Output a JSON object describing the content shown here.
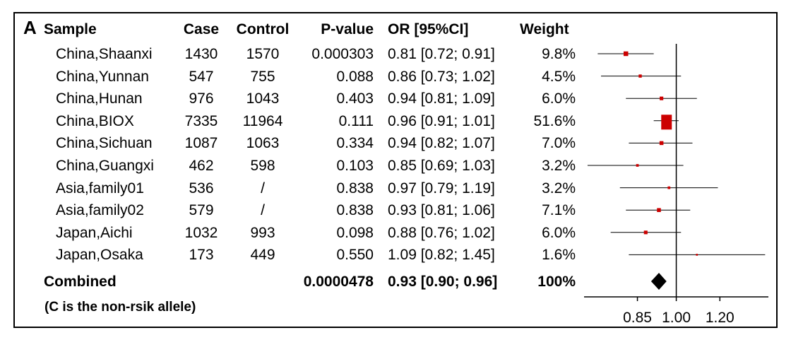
{
  "panel_label": "A",
  "headers": {
    "sample": "Sample",
    "case": "Case",
    "control": "Control",
    "pvalue": "P-value",
    "or": "OR [95%CI]",
    "weight": "Weight"
  },
  "rows": [
    {
      "sample": "China,Shaanxi",
      "case": "1430",
      "control": "1570",
      "pvalue": "0.000303",
      "or": "0.81 [0.72; 0.91]",
      "weight": "9.8%"
    },
    {
      "sample": "China,Yunnan",
      "case": "547",
      "control": "755",
      "pvalue": "0.088",
      "or": "0.86 [0.73; 1.02]",
      "weight": "4.5%"
    },
    {
      "sample": "China,Hunan",
      "case": "976",
      "control": "1043",
      "pvalue": "0.403",
      "or": "0.94 [0.81; 1.09]",
      "weight": "6.0%"
    },
    {
      "sample": "China,BIOX",
      "case": "7335",
      "control": "11964",
      "pvalue": "0.111",
      "or": "0.96 [0.91; 1.01]",
      "weight": "51.6%"
    },
    {
      "sample": "China,Sichuan",
      "case": "1087",
      "control": "1063",
      "pvalue": "0.334",
      "or": "0.94 [0.82; 1.07]",
      "weight": "7.0%"
    },
    {
      "sample": "China,Guangxi",
      "case": "462",
      "control": "598",
      "pvalue": "0.103",
      "or": "0.85 [0.69; 1.03]",
      "weight": "3.2%"
    },
    {
      "sample": "Asia,family01",
      "case": "536",
      "control": "/",
      "pvalue": "0.838",
      "or": "0.97 [0.79; 1.19]",
      "weight": "3.2%"
    },
    {
      "sample": "Asia,family02",
      "case": "579",
      "control": "/",
      "pvalue": "0.838",
      "or": "0.93 [0.81; 1.06]",
      "weight": "7.1%"
    },
    {
      "sample": "Japan,Aichi",
      "case": "1032",
      "control": "993",
      "pvalue": "0.098",
      "or": "0.88 [0.76; 1.02]",
      "weight": "6.0%"
    },
    {
      "sample": "Japan,Osaka",
      "case": "173",
      "control": "449",
      "pvalue": "0.550",
      "or": "1.09 [0.82; 1.45]",
      "weight": "1.6%"
    }
  ],
  "combined": {
    "label": "Combined",
    "pvalue": "0.0000478",
    "or": "0.93 [0.90; 0.96]",
    "weight": "100%"
  },
  "note": "(C is the non-rsik allele)",
  "chart_data": {
    "type": "forest",
    "x_scale": "log",
    "reference_line": 1.0,
    "x_ticks": [
      {
        "value": 0.85,
        "label": "0.85"
      },
      {
        "value": 1.0,
        "label": "1.00"
      },
      {
        "value": 1.2,
        "label": "1.20"
      }
    ],
    "studies": [
      {
        "name": "China,Shaanxi",
        "or": 0.81,
        "lower": 0.72,
        "upper": 0.91,
        "weight": 9.8
      },
      {
        "name": "China,Yunnan",
        "or": 0.86,
        "lower": 0.73,
        "upper": 1.02,
        "weight": 4.5
      },
      {
        "name": "China,Hunan",
        "or": 0.94,
        "lower": 0.81,
        "upper": 1.09,
        "weight": 6.0
      },
      {
        "name": "China,BIOX",
        "or": 0.96,
        "lower": 0.91,
        "upper": 1.01,
        "weight": 51.6
      },
      {
        "name": "China,Sichuan",
        "or": 0.94,
        "lower": 0.82,
        "upper": 1.07,
        "weight": 7.0
      },
      {
        "name": "China,Guangxi",
        "or": 0.85,
        "lower": 0.69,
        "upper": 1.03,
        "weight": 3.2
      },
      {
        "name": "Asia,family01",
        "or": 0.97,
        "lower": 0.79,
        "upper": 1.19,
        "weight": 3.2
      },
      {
        "name": "Asia,family02",
        "or": 0.93,
        "lower": 0.81,
        "upper": 1.06,
        "weight": 7.1
      },
      {
        "name": "Japan,Aichi",
        "or": 0.88,
        "lower": 0.76,
        "upper": 1.02,
        "weight": 6.0
      },
      {
        "name": "Japan,Osaka",
        "or": 1.09,
        "lower": 0.82,
        "upper": 1.45,
        "weight": 1.6
      }
    ],
    "combined": {
      "or": 0.93,
      "lower": 0.9,
      "upper": 0.96
    },
    "colors": {
      "point": "#cc0000",
      "line": "#000000",
      "diamond": "#000000"
    }
  }
}
